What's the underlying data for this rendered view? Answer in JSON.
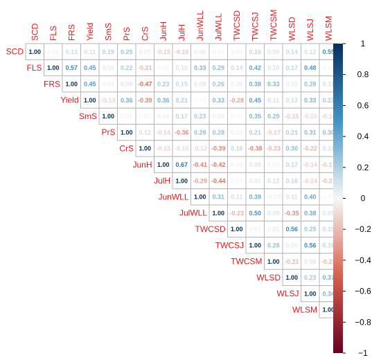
{
  "chart_data": {
    "type": "heatmap",
    "variables": [
      "SCD",
      "FLS",
      "FRS",
      "Yield",
      "SmS",
      "PrS",
      "CrS",
      "JunH",
      "JulH",
      "JunWLL",
      "JulWLL",
      "TWCSD",
      "TWCSJ",
      "TWCSM",
      "WLSD",
      "WLSJ",
      "WLSM"
    ],
    "matrix": [
      [
        1.0,
        0.02,
        0.13,
        0.11,
        0.19,
        0.25,
        0.05,
        -0.15,
        -0.16,
        0.06,
        0.02,
        0.03,
        0.16,
        0.09,
        0.14,
        0.12,
        0.55
      ],
      [
        null,
        1.0,
        0.57,
        0.45,
        0.06,
        0.22,
        -0.21,
        0.02,
        0.1,
        0.33,
        0.29,
        0.14,
        0.42,
        0.1,
        0.17,
        0.48,
        0.01
      ],
      [
        null,
        null,
        1.0,
        0.45,
        0.03,
        0.08,
        -0.47,
        0.23,
        0.15,
        0.08,
        0.26,
        0.05,
        0.38,
        0.33,
        0.05,
        0.28,
        0.11
      ],
      [
        null,
        null,
        null,
        1.0,
        -0.13,
        0.36,
        -0.39,
        0.36,
        0.21,
        0.0,
        0.33,
        -0.28,
        0.45,
        0.11,
        0.13,
        0.33,
        0.23
      ],
      [
        null,
        null,
        null,
        null,
        1.0,
        0.02,
        0.01,
        0.04,
        0.17,
        0.23,
        0.05,
        0.0,
        0.35,
        0.29,
        -0.15,
        -0.1,
        -0.14
      ],
      [
        null,
        null,
        null,
        null,
        null,
        1.0,
        0.12,
        -0.14,
        -0.36,
        0.28,
        0.28,
        0.03,
        0.21,
        -0.17,
        0.21,
        0.31,
        0.3
      ],
      [
        null,
        null,
        null,
        null,
        null,
        null,
        1.0,
        -0.13,
        -0.1,
        -0.12,
        -0.39,
        0.16,
        -0.38,
        -0.23,
        0.3,
        -0.22,
        0.11
      ],
      [
        null,
        null,
        null,
        null,
        null,
        null,
        null,
        1.0,
        0.67,
        -0.41,
        -0.42,
        0.03,
        0.08,
        0.03,
        0.17,
        -0.14,
        -0.17
      ],
      [
        null,
        null,
        null,
        null,
        null,
        null,
        null,
        null,
        1.0,
        -0.29,
        -0.44,
        0.02,
        0.06,
        0.12,
        0.16,
        -0.14,
        -0.21
      ],
      [
        null,
        null,
        null,
        null,
        null,
        null,
        null,
        null,
        null,
        1.0,
        0.31,
        0.11,
        0.39,
        -0.03,
        0.11,
        0.4,
        0.01
      ],
      [
        null,
        null,
        null,
        null,
        null,
        null,
        null,
        null,
        null,
        null,
        1.0,
        -0.23,
        0.5,
        0.09,
        -0.35,
        0.38,
        0.09
      ],
      [
        null,
        null,
        null,
        null,
        null,
        null,
        null,
        null,
        null,
        null,
        null,
        1.0,
        0.03,
        0.05,
        0.56,
        0.25,
        0.15
      ],
      [
        null,
        null,
        null,
        null,
        null,
        null,
        null,
        null,
        null,
        null,
        null,
        null,
        1.0,
        0.28,
        0.06,
        0.56,
        0.16
      ],
      [
        null,
        null,
        null,
        null,
        null,
        null,
        null,
        null,
        null,
        null,
        null,
        null,
        null,
        1.0,
        -0.21,
        0.08,
        -0.21
      ],
      [
        null,
        null,
        null,
        null,
        null,
        null,
        null,
        null,
        null,
        null,
        null,
        null,
        null,
        null,
        1.0,
        0.23,
        0.37
      ],
      [
        null,
        null,
        null,
        null,
        null,
        null,
        null,
        null,
        null,
        null,
        null,
        null,
        null,
        null,
        null,
        1.0,
        0.34
      ],
      [
        null,
        null,
        null,
        null,
        null,
        null,
        null,
        null,
        null,
        null,
        null,
        null,
        null,
        null,
        null,
        null,
        1.0
      ]
    ],
    "colorbar": {
      "range": [
        -1,
        1
      ],
      "ticks": [
        1,
        0.8,
        0.6,
        0.4,
        0.2,
        0,
        -0.2,
        -0.4,
        -0.6,
        -0.8,
        -1
      ],
      "tick_labels": [
        "1",
        "0.8",
        "0.6",
        "0.4",
        "0.2",
        "0",
        "−0.2",
        "−0.4",
        "−0.6",
        "−0.8",
        "−1"
      ],
      "position": "right"
    },
    "colors": {
      "negative_end": "#67001f",
      "negative_mid": "#d6604d",
      "neutral": "#f7f7f7",
      "positive_mid": "#4393c3",
      "positive_end": "#053061",
      "label_color": "#e31a1c",
      "grid_color": "#b3b3b3"
    },
    "title": "",
    "xlabel": "",
    "ylabel": "",
    "grid": true
  }
}
